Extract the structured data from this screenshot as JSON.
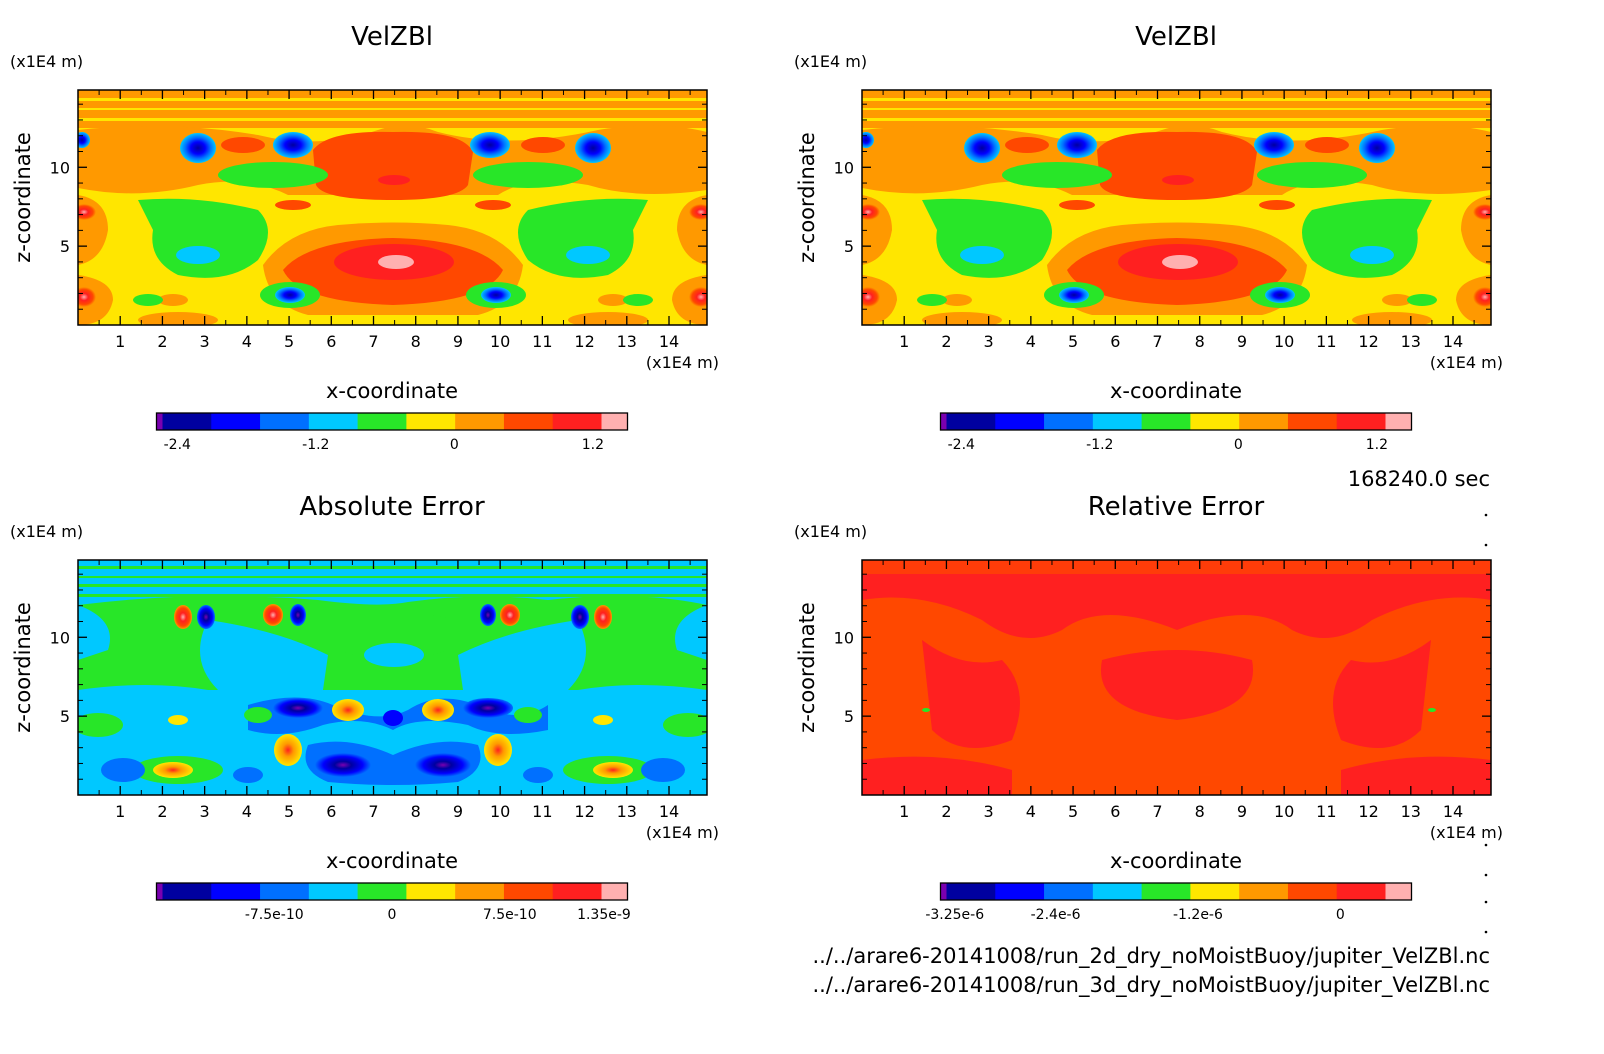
{
  "chart_data": [
    {
      "type": "heatmap",
      "title": "VelZBl",
      "xlabel": "x-coordinate",
      "ylabel": "z-coordinate",
      "x_unit": "(x1E4 m)",
      "y_unit": "(x1E4 m)",
      "x_ticks": [
        "1",
        "2",
        "3",
        "4",
        "5",
        "6",
        "7",
        "8",
        "9",
        "10",
        "11",
        "12",
        "13",
        "14"
      ],
      "y_ticks": [
        "5",
        "10"
      ],
      "xlim": [
        0,
        14.9
      ],
      "ylim": [
        0,
        14.9
      ],
      "colorbar": {
        "min": -2.58,
        "max": 1.5,
        "tick_values": [
          -2.4,
          -1.2,
          0,
          1.2
        ],
        "tick_labels": [
          "-2.4",
          "-1.2",
          "0",
          "1.2"
        ],
        "colors": [
          "#7a00b0",
          "#0000a0",
          "#0000ff",
          "#0070ff",
          "#00c8ff",
          "#28e628",
          "#ffe600",
          "#ff9900",
          "#ff4800",
          "#ff2020",
          "#ffb0b0"
        ]
      }
    },
    {
      "type": "heatmap",
      "title": "VelZBl",
      "xlabel": "x-coordinate",
      "ylabel": "z-coordinate",
      "x_unit": "(x1E4 m)",
      "y_unit": "(x1E4 m)",
      "x_ticks": [
        "1",
        "2",
        "3",
        "4",
        "5",
        "6",
        "7",
        "8",
        "9",
        "10",
        "11",
        "12",
        "13",
        "14"
      ],
      "y_ticks": [
        "5",
        "10"
      ],
      "xlim": [
        0,
        14.9
      ],
      "ylim": [
        0,
        14.9
      ],
      "colorbar": {
        "min": -2.58,
        "max": 1.5,
        "tick_values": [
          -2.4,
          -1.2,
          0,
          1.2
        ],
        "tick_labels": [
          "-2.4",
          "-1.2",
          "0",
          "1.2"
        ],
        "colors": [
          "#7a00b0",
          "#0000a0",
          "#0000ff",
          "#0070ff",
          "#00c8ff",
          "#28e628",
          "#ffe600",
          "#ff9900",
          "#ff4800",
          "#ff2020",
          "#ffb0b0"
        ]
      }
    },
    {
      "type": "heatmap",
      "title": "Absolute Error",
      "xlabel": "x-coordinate",
      "ylabel": "z-coordinate",
      "x_unit": "(x1E4 m)",
      "y_unit": "(x1E4 m)",
      "x_ticks": [
        "1",
        "2",
        "3",
        "4",
        "5",
        "6",
        "7",
        "8",
        "9",
        "10",
        "11",
        "12",
        "13",
        "14"
      ],
      "y_ticks": [
        "5",
        "10"
      ],
      "xlim": [
        0,
        14.9
      ],
      "ylim": [
        0,
        14.9
      ],
      "colorbar": {
        "min": -1.5e-09,
        "max": 1.5e-09,
        "tick_values": [
          -7.5e-10,
          0,
          7.5e-10,
          1.35e-09
        ],
        "tick_labels": [
          "-7.5e-10",
          "0",
          "7.5e-10",
          "1.35e-9"
        ],
        "colors": [
          "#7a00b0",
          "#0000a0",
          "#0000ff",
          "#0070ff",
          "#00c8ff",
          "#28e628",
          "#ffe600",
          "#ff9900",
          "#ff4800",
          "#ff2020",
          "#ffb0b0"
        ]
      }
    },
    {
      "type": "heatmap",
      "title": "Relative Error",
      "xlabel": "x-coordinate",
      "ylabel": "z-coordinate",
      "x_unit": "(x1E4 m)",
      "y_unit": "(x1E4 m)",
      "x_ticks": [
        "1",
        "2",
        "3",
        "4",
        "5",
        "6",
        "7",
        "8",
        "9",
        "10",
        "11",
        "12",
        "13",
        "14"
      ],
      "y_ticks": [
        "5",
        "10"
      ],
      "xlim": [
        0,
        14.9
      ],
      "ylim": [
        0,
        14.9
      ],
      "colorbar": {
        "min": -3.37e-06,
        "max": 6e-07,
        "tick_values": [
          -3.25e-06,
          -2.4e-06,
          -1.2e-06,
          0
        ],
        "tick_labels": [
          "-3.25e-6",
          "-2.4e-6",
          "-1.2e-6",
          "0"
        ],
        "colors": [
          "#7a00b0",
          "#0000a0",
          "#0000ff",
          "#0070ff",
          "#00c8ff",
          "#28e628",
          "#ffe600",
          "#ff9900",
          "#ff4800",
          "#ff2020",
          "#ffb0b0"
        ]
      }
    }
  ],
  "time_label": "168240.0 sec",
  "footer_lines": [
    "../../arare6-20141008/run_2d_dry_noMoistBuoy/jupiter_VelZBl.nc",
    "../../arare6-20141008/run_3d_dry_noMoistBuoy/jupiter_VelZBl.nc"
  ]
}
